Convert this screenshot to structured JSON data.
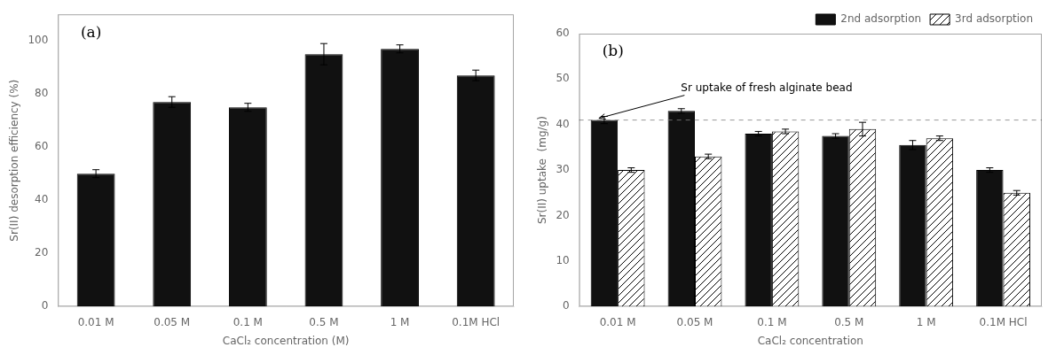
{
  "chart_data": [
    {
      "type": "bar",
      "categories": [
        "0.01 M",
        "0.05 M",
        "0.1 M",
        "0.5 M",
        "1 M",
        "0.1M HCl"
      ],
      "values": [
        50,
        77,
        75,
        95,
        97,
        87
      ],
      "errors": [
        1.5,
        2.0,
        1.5,
        4.0,
        1.5,
        2.0
      ],
      "color": "#111111",
      "xlabel": "CaCl₂ concentration (M)",
      "ylabel": "Sr(II) desorption efficiency (%)",
      "annotations": [
        {
          "text": "(a)"
        }
      ],
      "ylim": [
        0,
        110
      ],
      "yticks": [
        0,
        20,
        40,
        60,
        80,
        100
      ],
      "grid": false
    },
    {
      "type": "bar",
      "categories": [
        "0.01 M",
        "0.05 M",
        "0.1 M",
        "0.5 M",
        "1 M",
        "0.1M HCl"
      ],
      "series": [
        {
          "name": "2nd adsorption",
          "color": "#111111",
          "values": [
            41,
            43,
            38,
            37.5,
            35.5,
            30
          ],
          "errors": [
            0.8,
            0.5,
            0.5,
            0.5,
            1.0,
            0.5
          ]
        },
        {
          "name": "3rd adsorption",
          "color": "#ffffff",
          "values": [
            30,
            33,
            38.5,
            39,
            37,
            25
          ],
          "errors": [
            0.5,
            0.5,
            0.5,
            1.5,
            0.5,
            0.5
          ]
        }
      ],
      "xlabel": "CaCl₂ concentration",
      "ylabel": "Sr(II) uptake  (mg/g)",
      "reference_line": 41,
      "annotations": [
        {
          "text": "(b)"
        },
        {
          "text": "Sr uptake of fresh alginate bead",
          "series": "2nd adsorption",
          "x": "0.01 M",
          "y": 41
        }
      ],
      "ylim": [
        0,
        60
      ],
      "yticks": [
        0,
        10,
        20,
        30,
        40,
        50,
        60
      ],
      "legend": "upper right",
      "grid": false
    }
  ]
}
